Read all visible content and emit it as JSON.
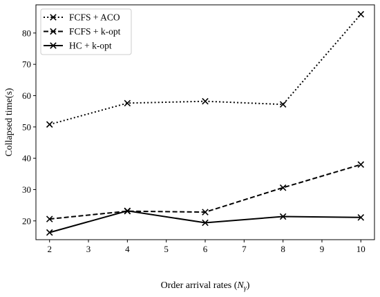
{
  "chart_data": {
    "type": "line",
    "title": "",
    "xlabel": "Order arrival rates (",
    "xlabel_symbol": "N",
    "xlabel_subscript": "γ",
    "xlabel_close": ")",
    "ylabel": "Collapsed time(s)",
    "x": [
      2,
      4,
      6,
      8,
      10
    ],
    "xlim": [
      1.65,
      10.35
    ],
    "ylim": [
      14,
      89
    ],
    "xticks": [
      2,
      3,
      4,
      5,
      6,
      7,
      8,
      9,
      10
    ],
    "yticks": [
      20,
      30,
      40,
      50,
      60,
      70,
      80
    ],
    "grid": false,
    "legend_position": "top-left",
    "marker": "x",
    "series": [
      {
        "name": "FCFS + ACO",
        "style": "dotted",
        "values": [
          50.8,
          57.6,
          58.2,
          57.2,
          86.0
        ]
      },
      {
        "name": "FCFS + k-opt",
        "style": "dashed",
        "values": [
          20.6,
          23.1,
          22.8,
          30.6,
          38.0
        ]
      },
      {
        "name": "HC + k-opt",
        "style": "solid",
        "values": [
          16.3,
          23.2,
          19.4,
          21.4,
          21.1
        ]
      }
    ],
    "colors": {
      "line": "#000000",
      "background": "#ffffff"
    }
  }
}
